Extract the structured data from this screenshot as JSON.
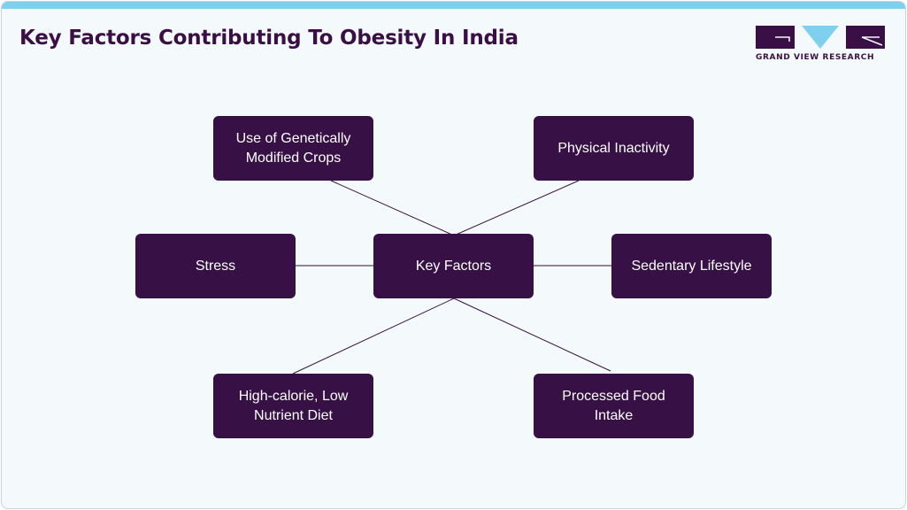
{
  "title": "Key Factors Contributing To Obesity In India",
  "logo": {
    "text": "GRAND VIEW RESEARCH",
    "color": "#3a0f45",
    "accent": "#7fd0ee"
  },
  "diagram": {
    "center": "Key Factors",
    "factors": {
      "top_left": "Use of Genetically Modified Crops",
      "top_right": "Physical Inactivity",
      "mid_left": "Stress",
      "mid_right": "Sedentary Lifestyle",
      "bottom_left": "High-calorie, Low Nutrient Diet",
      "bottom_right": "Processed Food Intake"
    }
  },
  "colors": {
    "node_fill": "#371145",
    "node_text": "#ffffff",
    "line": "#371145",
    "background": "#f4f9fc",
    "top_bar": "#7fd0ee"
  }
}
